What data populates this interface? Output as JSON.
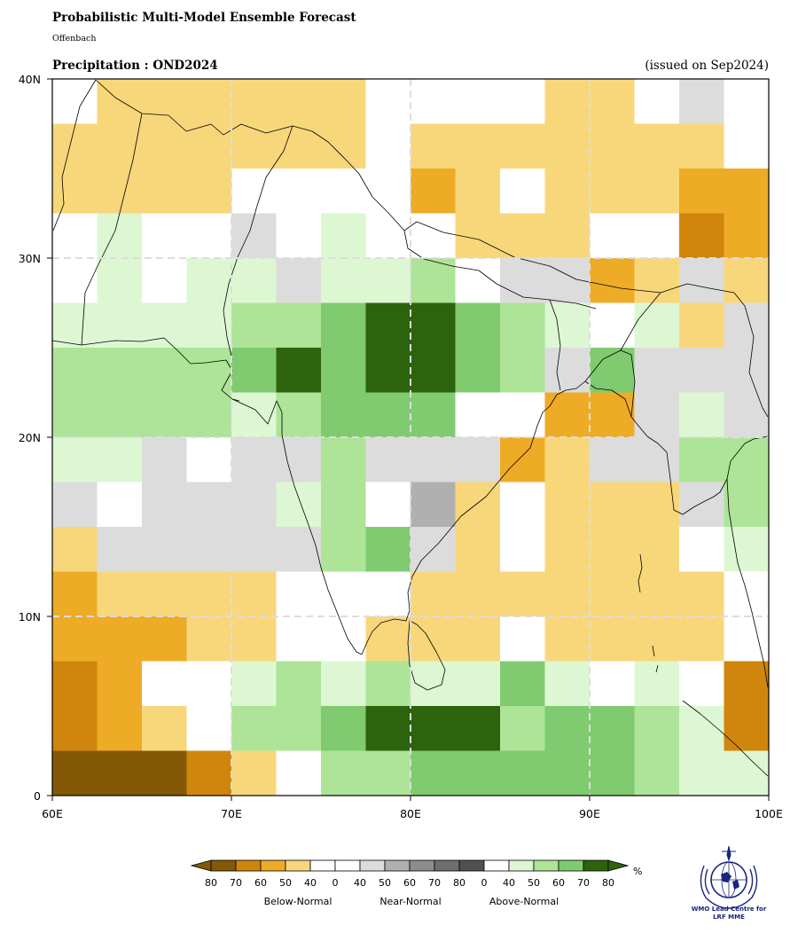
{
  "header": {
    "title": "Probabilistic Multi-Model Ensemble Forecast",
    "subtitle": "Offenbach",
    "variable": "Precipitation : OND2024",
    "issued": "(issued on Sep2024)"
  },
  "map": {
    "lon_range": [
      60,
      100
    ],
    "lat_range": [
      0,
      40
    ],
    "cell_size_deg": 2.5,
    "x_ticks": [
      "60E",
      "70E",
      "80E",
      "90E",
      "100E"
    ],
    "y_ticks": [
      "40N",
      "30N",
      "20N",
      "10N",
      "0"
    ],
    "gridlines": true,
    "coastlines": true,
    "category_colors": {
      "W": "#ffffff",
      "N": "#dcdcdc",
      "N60": "#b0b0b0",
      "B50": "#f8d77b",
      "B60": "#eeab26",
      "B70": "#d0860c",
      "B80": "#835908",
      "A40": "#ddf7d3",
      "A50": "#ade497",
      "A60": "#80cb70",
      "A80": "#2d630c"
    },
    "grid_rows_north_to_south": [
      [
        "W",
        "B50",
        "B50",
        "B50",
        "B50",
        "B50",
        "B50",
        "W",
        "W",
        "W",
        "W",
        "B50",
        "B50",
        "W",
        "N",
        "W"
      ],
      [
        "B50",
        "B50",
        "B50",
        "B50",
        "B50",
        "B50",
        "B50",
        "W",
        "B50",
        "B50",
        "B50",
        "B50",
        "B50",
        "B50",
        "B50",
        "W"
      ],
      [
        "B50",
        "B50",
        "B50",
        "B50",
        "W",
        "W",
        "W",
        "W",
        "B60",
        "B50",
        "W",
        "B50",
        "B50",
        "B50",
        "B60",
        "B60"
      ],
      [
        "W",
        "A40",
        "W",
        "W",
        "N",
        "W",
        "A40",
        "W",
        "W",
        "B50",
        "B50",
        "B50",
        "W",
        "W",
        "B70",
        "B60"
      ],
      [
        "W",
        "A40",
        "W",
        "A40",
        "A40",
        "N",
        "A40",
        "A40",
        "A50",
        "W",
        "N",
        "N",
        "B60",
        "B50",
        "N",
        "B50"
      ],
      [
        "A40",
        "A40",
        "A40",
        "A40",
        "A50",
        "A50",
        "A60",
        "A80",
        "A80",
        "A60",
        "A50",
        "A40",
        "W",
        "A40",
        "B50",
        "N"
      ],
      [
        "A50",
        "A50",
        "A50",
        "A50",
        "A60",
        "A80",
        "A60",
        "A80",
        "A80",
        "A60",
        "A50",
        "N",
        "A60",
        "N",
        "N",
        "N"
      ],
      [
        "A50",
        "A50",
        "A50",
        "A50",
        "A40",
        "A50",
        "A60",
        "A60",
        "A60",
        "W",
        "W",
        "B60",
        "B60",
        "N",
        "A40",
        "N"
      ],
      [
        "A40",
        "A40",
        "N",
        "W",
        "N",
        "N",
        "A50",
        "N",
        "N",
        "N",
        "B60",
        "B50",
        "N",
        "N",
        "A50",
        "A50"
      ],
      [
        "N",
        "W",
        "N",
        "N",
        "N",
        "A40",
        "A50",
        "W",
        "N60",
        "B50",
        "W",
        "B50",
        "B50",
        "B50",
        "N",
        "A50"
      ],
      [
        "B50",
        "N",
        "N",
        "N",
        "N",
        "N",
        "A50",
        "A60",
        "N",
        "B50",
        "W",
        "B50",
        "B50",
        "B50",
        "W",
        "A40"
      ],
      [
        "B60",
        "B50",
        "B50",
        "B50",
        "B50",
        "W",
        "W",
        "W",
        "B50",
        "B50",
        "B50",
        "B50",
        "B50",
        "B50",
        "B50",
        "W"
      ],
      [
        "B60",
        "B60",
        "B60",
        "B50",
        "B50",
        "W",
        "W",
        "B50",
        "B50",
        "B50",
        "W",
        "B50",
        "B50",
        "B50",
        "B50",
        "W"
      ],
      [
        "B70",
        "B60",
        "W",
        "W",
        "A40",
        "A50",
        "A40",
        "A50",
        "A40",
        "A40",
        "A60",
        "A40",
        "W",
        "A40",
        "W",
        "B70"
      ],
      [
        "B70",
        "B60",
        "B50",
        "W",
        "A50",
        "A50",
        "A60",
        "A80",
        "A80",
        "A80",
        "A50",
        "A60",
        "A60",
        "A50",
        "A40",
        "B70"
      ],
      [
        "B80",
        "B80",
        "B80",
        "B70",
        "B50",
        "W",
        "A50",
        "A50",
        "A60",
        "A60",
        "A60",
        "A60",
        "A60",
        "A50",
        "A40",
        "A40"
      ]
    ]
  },
  "legend": {
    "unit": "%",
    "colors": [
      "#835908",
      "#d0860c",
      "#eeab26",
      "#f8d77b",
      "#ffffff",
      "#ffffff",
      "#dcdcdc",
      "#b0b0b0",
      "#8c8c8c",
      "#6e6e6e",
      "#505050",
      "#ffffff",
      "#ddf7d3",
      "#ade497",
      "#80cb70",
      "#2d630c"
    ],
    "tick_labels": [
      "80",
      "70",
      "60",
      "50",
      "40",
      "0",
      "40",
      "50",
      "60",
      "70",
      "80",
      "0",
      "40",
      "50",
      "60",
      "70",
      "80"
    ],
    "group_labels": [
      "Below-Normal",
      "Near-Normal",
      "Above-Normal"
    ]
  },
  "logo": {
    "icon": "wmo-emblem-icon",
    "text_line1": "WMO Lead Centre for",
    "text_line2": "LRF MME"
  }
}
